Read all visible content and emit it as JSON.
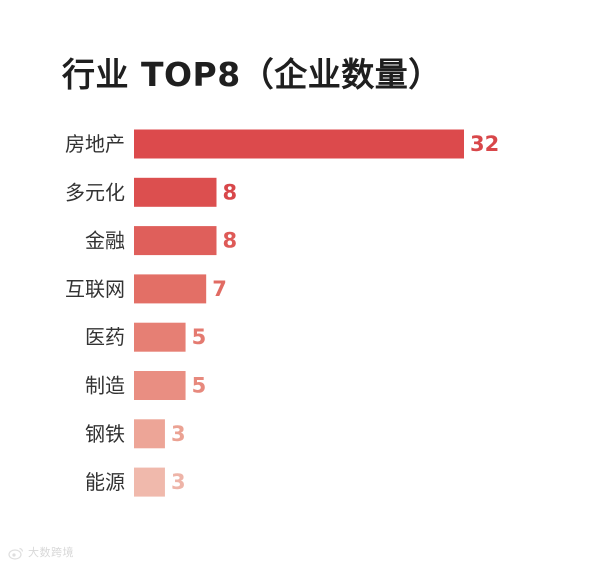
{
  "chart_data": {
    "type": "bar",
    "orientation": "horizontal",
    "title": "行业 TOP8（企业数量）",
    "categories": [
      "房地产",
      "多元化",
      "金融",
      "互联网",
      "医药",
      "制造",
      "钢铁",
      "能源"
    ],
    "values": [
      32,
      8,
      8,
      7,
      5,
      5,
      3,
      3
    ],
    "xlim": [
      0,
      32
    ],
    "grid": false,
    "legend": "none",
    "bar_colors": [
      "#dc4a4c",
      "#dc4f4f",
      "#df5f5b",
      "#e36f66",
      "#e67f74",
      "#e98e82",
      "#eda597",
      "#f0b9ac"
    ],
    "value_label_colors": [
      "#d8474a",
      "#d8474a",
      "#de5a57",
      "#e16b63",
      "#e47a70",
      "#e7897d",
      "#eba293",
      "#eeb4a8"
    ]
  },
  "watermark": {
    "text": "大数跨境"
  },
  "colors": {
    "title": "#1f1f1f",
    "label": "#333333",
    "background": "#ffffff"
  }
}
